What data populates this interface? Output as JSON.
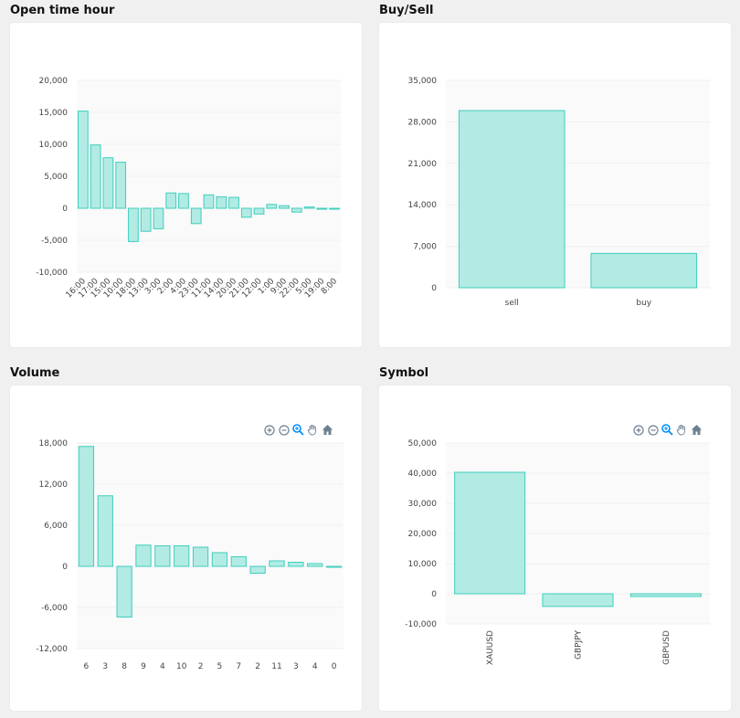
{
  "charts": [
    {
      "id": "hour",
      "title": "Open time hour",
      "chart_data": {
        "type": "bar",
        "categories": [
          "16:00",
          "17:00",
          "15:00",
          "10:00",
          "18:00",
          "13:00",
          "3:00",
          "2:00",
          "4:00",
          "23:00",
          "11:00",
          "14:00",
          "20:00",
          "21:00",
          "12:00",
          "1:00",
          "9:00",
          "22:00",
          "5:00",
          "19:00",
          "8:00"
        ],
        "values": [
          15200,
          9900,
          7900,
          7200,
          -5200,
          -3600,
          -3200,
          2400,
          2300,
          -2400,
          2100,
          1800,
          1700,
          -1400,
          -900,
          600,
          400,
          -600,
          200,
          -150,
          -100
        ],
        "yticks": [
          20000,
          15000,
          10000,
          5000,
          0,
          -5000,
          -10000
        ],
        "ytick_labels": [
          "20,000",
          "15,000",
          "10,000",
          "5,000",
          "0",
          "-5,000",
          "-10,000"
        ],
        "ylim": [
          -10000,
          20000
        ],
        "x_label_rotation": "diagonal"
      }
    },
    {
      "id": "buysell",
      "title": "Buy/Sell",
      "chart_data": {
        "type": "bar",
        "categories": [
          "sell",
          "buy"
        ],
        "values": [
          29900,
          5800
        ],
        "yticks": [
          35000,
          28000,
          21000,
          14000,
          7000,
          0
        ],
        "ytick_labels": [
          "35,000",
          "28,000",
          "21,000",
          "14,000",
          "7,000",
          "0"
        ],
        "ylim": [
          0,
          35000
        ]
      }
    },
    {
      "id": "volume",
      "title": "Volume",
      "chart_data": {
        "type": "bar",
        "categories": [
          "6",
          "3",
          "8",
          "9",
          "4",
          "10",
          "2",
          "5",
          "7",
          "2",
          "11",
          "3",
          "4",
          "0"
        ],
        "values": [
          17500,
          10300,
          -7400,
          3100,
          3000,
          3000,
          2800,
          2000,
          1400,
          -1000,
          800,
          600,
          400,
          -100
        ],
        "yticks": [
          18000,
          12000,
          6000,
          0,
          -6000,
          -12000
        ],
        "ytick_labels": [
          "18,000",
          "12,000",
          "6,000",
          "0",
          "-6,000",
          "-12,000"
        ],
        "ylim": [
          -12000,
          18000
        ]
      }
    },
    {
      "id": "symbol",
      "title": "Symbol",
      "chart_data": {
        "type": "bar",
        "categories": [
          "XAUUSD",
          "GBPJPY",
          "GBPUSD"
        ],
        "values": [
          40300,
          -4200,
          -900
        ],
        "yticks": [
          50000,
          40000,
          30000,
          20000,
          10000,
          0,
          -10000
        ],
        "ytick_labels": [
          "50,000",
          "40,000",
          "30,000",
          "20,000",
          "10,000",
          "0",
          "-10,000"
        ],
        "ylim": [
          -10000,
          50000
        ],
        "x_label_rotation": "vertical"
      }
    }
  ],
  "toolbar_icons": [
    "zoom-in-icon",
    "zoom-out-icon",
    "zoom-select-icon",
    "pan-hand-icon",
    "reset-home-icon"
  ],
  "colors": {
    "bar_fill": "#b2ebe4",
    "bar_stroke": "#3ecfbd",
    "grid": "#f0f0f0",
    "plot_bg": "#fafafa",
    "icon": "#6e8192",
    "icon_active": "#008ffb"
  }
}
